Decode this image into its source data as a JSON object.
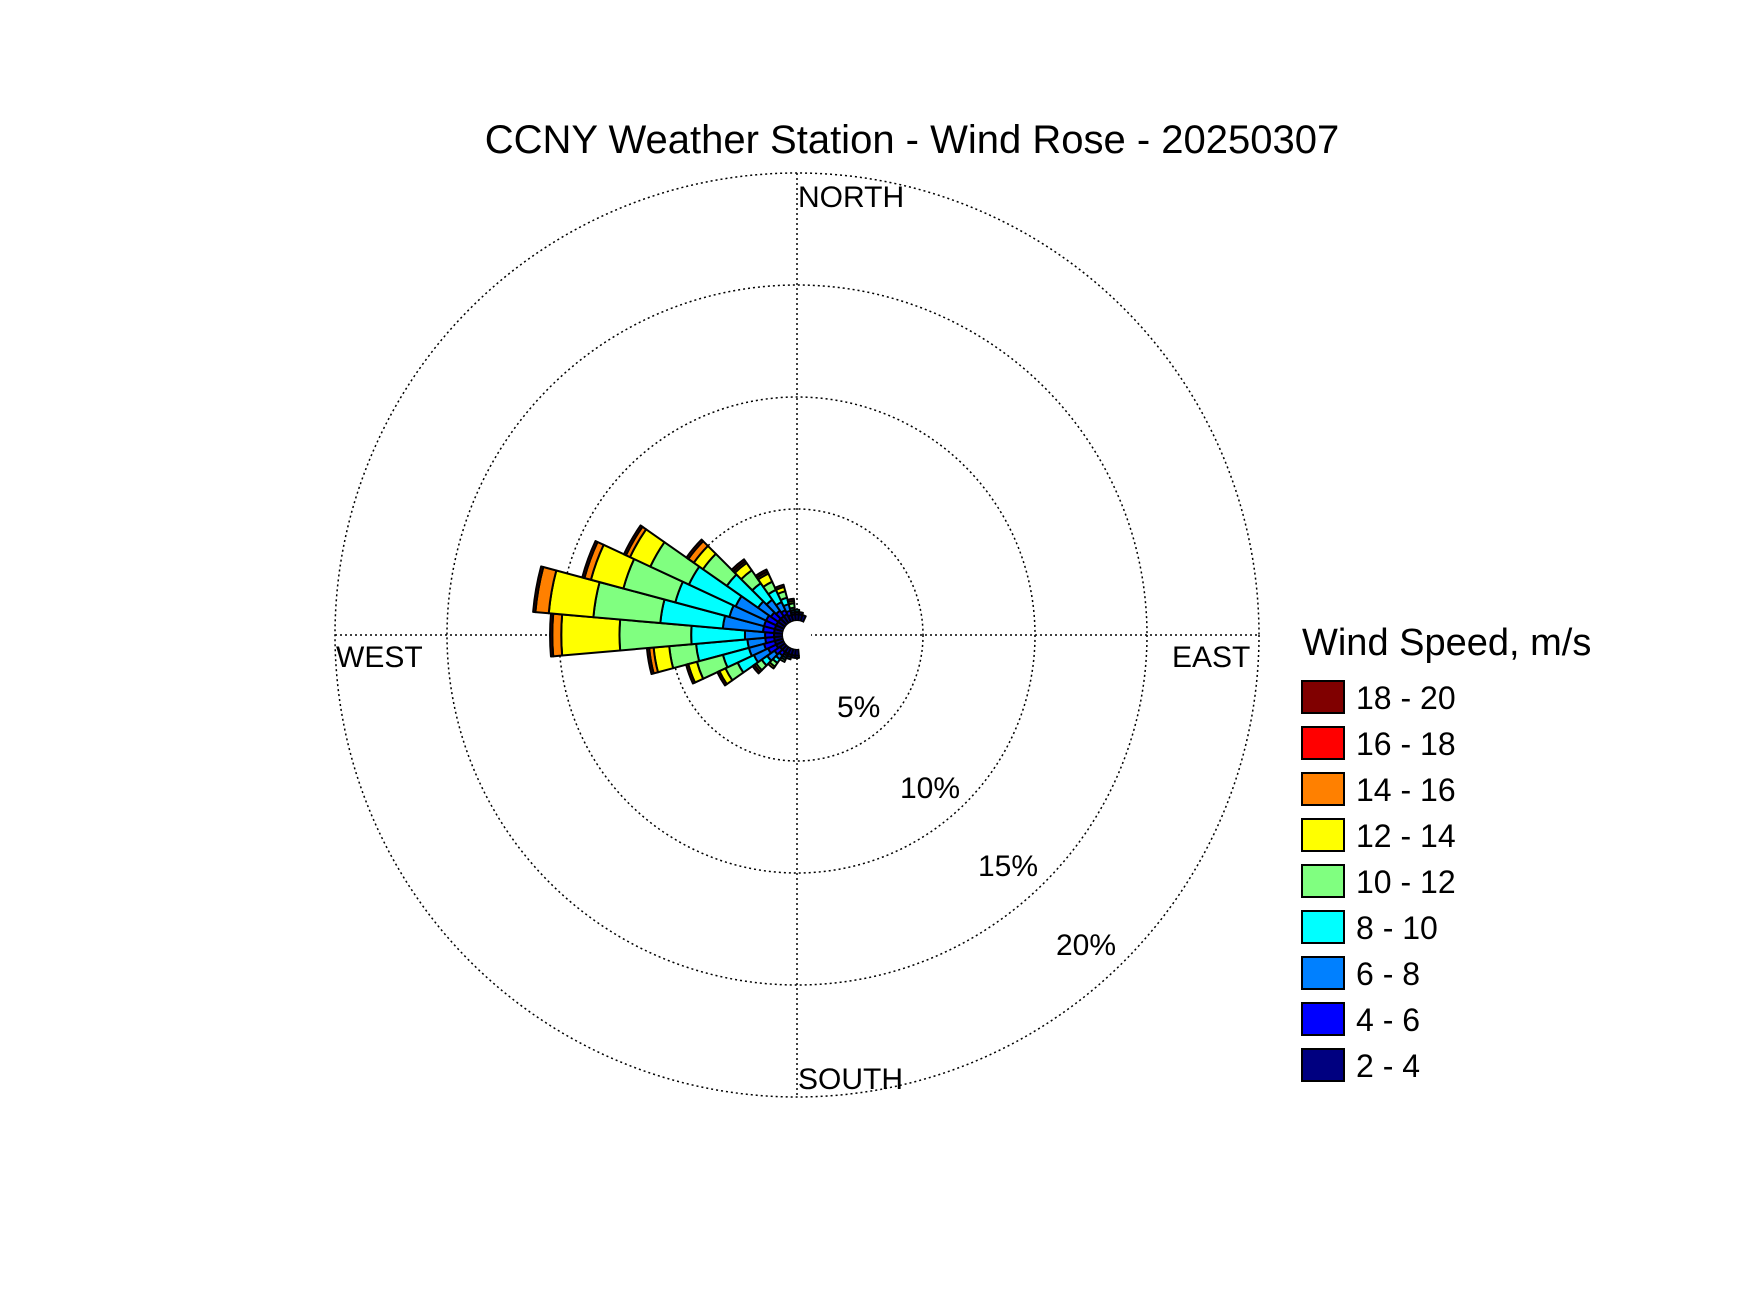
{
  "chart_data": {
    "type": "wind-rose",
    "title": "CCNY Weather Station - Wind Rose - 20250307",
    "compass_labels": {
      "north": "NORTH",
      "east": "EAST",
      "south": "SOUTH",
      "west": "WEST"
    },
    "radial_axis": {
      "unit": "%",
      "rings": [
        5,
        10,
        15,
        20
      ],
      "ring_labels": [
        "5%",
        "10%",
        "15%",
        "20%"
      ],
      "max": 20
    },
    "grid": true,
    "legend": {
      "title": "Wind Speed, m/s",
      "placement": "right",
      "bins": [
        {
          "label": "18 - 20",
          "color": "#800000"
        },
        {
          "label": "16 - 18",
          "color": "#ff0000"
        },
        {
          "label": "14 - 16",
          "color": "#ff8000"
        },
        {
          "label": "12 - 14",
          "color": "#ffff00"
        },
        {
          "label": "10 - 12",
          "color": "#80ff80"
        },
        {
          "label": "8 - 10",
          "color": "#00ffff"
        },
        {
          "label": "6 - 8",
          "color": "#0080ff"
        },
        {
          "label": "4 - 6",
          "color": "#0000ff"
        },
        {
          "label": "2 - 4",
          "color": "#000080"
        }
      ]
    },
    "bin_order_inner_to_outer": [
      "2 - 4",
      "4 - 6",
      "6 - 8",
      "8 - 10",
      "10 - 12",
      "12 - 14",
      "14 - 16",
      "16 - 18",
      "18 - 20"
    ],
    "direction_width_deg": 10,
    "sectors": [
      {
        "direction_deg": 260,
        "cumulative_pct": [
          0.4,
          0.8,
          1.6,
          3.9,
          5.1,
          5.8,
          6.0,
          6.0,
          6.1
        ]
      },
      {
        "direction_deg": 270,
        "cumulative_pct": [
          0.4,
          0.8,
          1.7,
          4.1,
          7.3,
          9.9,
          10.3,
          10.3,
          10.4
        ]
      },
      {
        "direction_deg": 280,
        "cumulative_pct": [
          0.4,
          0.9,
          2.7,
          5.5,
          8.5,
          10.5,
          11.1,
          11.1,
          11.2
        ]
      },
      {
        "direction_deg": 290,
        "cumulative_pct": [
          0.4,
          0.9,
          2.5,
          5.0,
          7.4,
          8.9,
          9.2,
          9.2,
          9.3
        ]
      },
      {
        "direction_deg": 300,
        "cumulative_pct": [
          0.4,
          0.9,
          2.4,
          4.7,
          6.6,
          7.6,
          7.8,
          7.8,
          7.9
        ]
      },
      {
        "direction_deg": 310,
        "cumulative_pct": [
          0.4,
          0.8,
          1.5,
          3.2,
          4.5,
          5.0,
          5.3,
          5.3,
          5.4
        ]
      },
      {
        "direction_deg": 320,
        "cumulative_pct": [
          0.4,
          0.7,
          1.3,
          2.2,
          2.9,
          3.3,
          3.4,
          3.4,
          3.5
        ]
      },
      {
        "direction_deg": 330,
        "cumulative_pct": [
          0.4,
          0.6,
          1.0,
          1.6,
          2.0,
          2.4,
          2.5,
          2.5,
          2.6
        ]
      },
      {
        "direction_deg": 340,
        "cumulative_pct": [
          0.3,
          0.5,
          0.8,
          1.1,
          1.4,
          1.6,
          1.6,
          1.6,
          1.7
        ]
      },
      {
        "direction_deg": 350,
        "cumulative_pct": [
          0.3,
          0.4,
          0.5,
          0.6,
          0.8,
          0.9,
          0.9,
          0.9,
          1.0
        ]
      },
      {
        "direction_deg": 250,
        "cumulative_pct": [
          0.4,
          0.9,
          1.6,
          2.8,
          4.0,
          4.4,
          4.4,
          4.4,
          4.5
        ]
      },
      {
        "direction_deg": 240,
        "cumulative_pct": [
          0.4,
          0.8,
          1.5,
          2.3,
          2.9,
          3.2,
          3.2,
          3.2,
          3.3
        ]
      },
      {
        "direction_deg": 230,
        "cumulative_pct": [
          0.3,
          0.6,
          1.0,
          1.3,
          1.6,
          1.7,
          1.7,
          1.7,
          1.8
        ]
      },
      {
        "direction_deg": 220,
        "cumulative_pct": [
          0.3,
          0.5,
          0.7,
          0.9,
          1.1,
          1.2,
          1.2,
          1.2,
          1.2
        ]
      },
      {
        "direction_deg": 210,
        "cumulative_pct": [
          0.3,
          0.4,
          0.5,
          0.6,
          0.7,
          0.7,
          0.7,
          0.7,
          0.7
        ]
      },
      {
        "direction_deg": 0,
        "cumulative_pct": [
          0.3,
          0.4,
          0.4,
          0.5,
          0.5,
          0.5,
          0.5,
          0.5,
          0.5
        ]
      },
      {
        "direction_deg": 10,
        "cumulative_pct": [
          0.3,
          0.4,
          0.4,
          0.4,
          0.4,
          0.4,
          0.4,
          0.4,
          0.4
        ]
      },
      {
        "direction_deg": 20,
        "cumulative_pct": [
          0.3,
          0.3,
          0.3,
          0.3,
          0.3,
          0.3,
          0.3,
          0.3,
          0.3
        ]
      },
      {
        "direction_deg": 180,
        "cumulative_pct": [
          0.3,
          0.4,
          0.4,
          0.4,
          0.4,
          0.4,
          0.4,
          0.4,
          0.4
        ]
      },
      {
        "direction_deg": 190,
        "cumulative_pct": [
          0.3,
          0.4,
          0.4,
          0.4,
          0.4,
          0.4,
          0.4,
          0.4,
          0.4
        ]
      },
      {
        "direction_deg": 200,
        "cumulative_pct": [
          0.3,
          0.4,
          0.5,
          0.5,
          0.5,
          0.5,
          0.5,
          0.5,
          0.5
        ]
      }
    ]
  }
}
